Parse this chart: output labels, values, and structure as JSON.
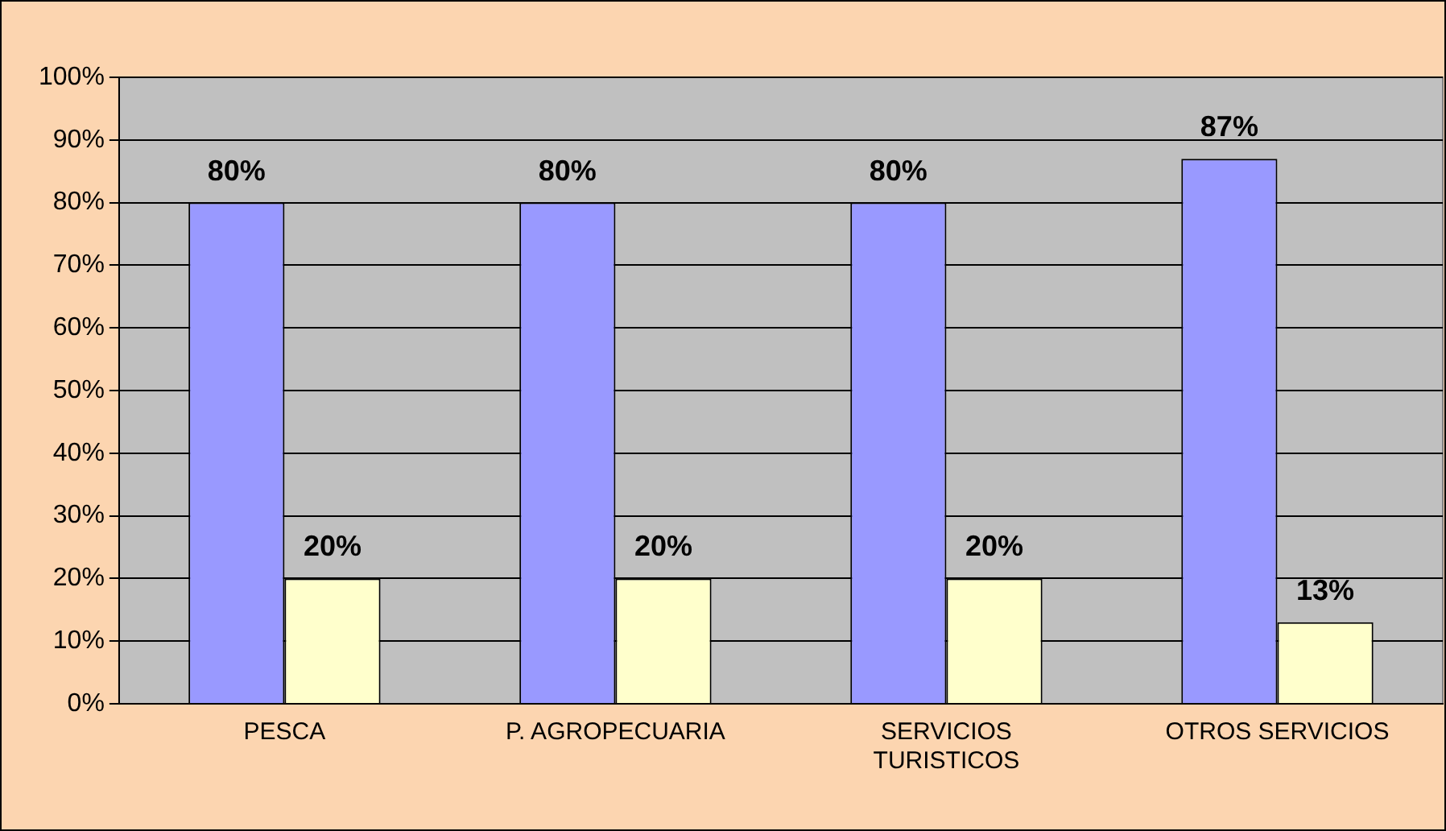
{
  "chart_data": {
    "type": "bar",
    "categories": [
      "PESCA",
      "P. AGROPECUARIA",
      "SERVICIOS TURISTICOS",
      "OTROS SERVICIOS"
    ],
    "series": [
      {
        "color": "#9999ff",
        "values": [
          80,
          80,
          80,
          87
        ],
        "value_labels": [
          "80%",
          "80%",
          "80%",
          "87%"
        ]
      },
      {
        "color": "#ffffcc",
        "values": [
          20,
          20,
          20,
          13
        ],
        "value_labels": [
          "20%",
          "20%",
          "20%",
          "13%"
        ]
      }
    ],
    "ylim": [
      0,
      100
    ],
    "yticks": [
      {
        "value": 0,
        "label": "0%"
      },
      {
        "value": 10,
        "label": "10%"
      },
      {
        "value": 20,
        "label": "20%"
      },
      {
        "value": 30,
        "label": "30%"
      },
      {
        "value": 40,
        "label": "40%"
      },
      {
        "value": 50,
        "label": "50%"
      },
      {
        "value": 60,
        "label": "60%"
      },
      {
        "value": 70,
        "label": "70%"
      },
      {
        "value": 80,
        "label": "80%"
      },
      {
        "value": 90,
        "label": "90%"
      },
      {
        "value": 100,
        "label": "100%"
      }
    ],
    "grid": "y",
    "legend": false
  }
}
